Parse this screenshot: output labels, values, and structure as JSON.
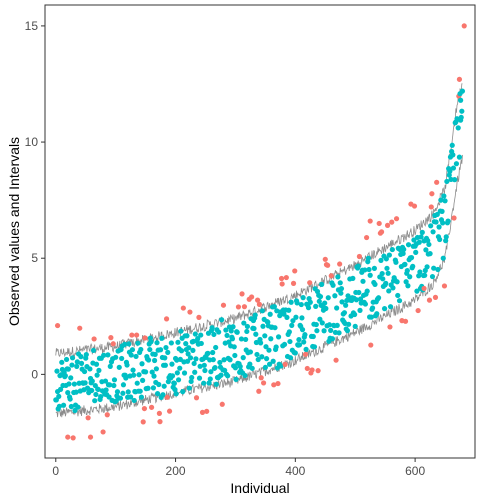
{
  "chart_data": {
    "type": "scatter",
    "title": "",
    "xlabel": "Individual",
    "ylabel": "Observed values and Intervals",
    "xlim": [
      -18,
      700
    ],
    "ylim": [
      -3.6,
      15.9
    ],
    "x_ticks": [
      0,
      200,
      400,
      600
    ],
    "y_ticks": [
      0,
      5,
      10,
      15
    ],
    "grid": false,
    "legend": "none",
    "n_individuals": 680,
    "colors": {
      "inside": "#00BFC4",
      "outside": "#F8766D",
      "interval": "#8C8C8C",
      "axis": "#333333"
    },
    "interval_band": {
      "description_points_x": [
        0,
        100,
        200,
        300,
        400,
        500,
        600,
        630,
        650,
        670,
        684
      ],
      "lower": [
        -1.7,
        -1.4,
        -0.8,
        -0.3,
        0.6,
        1.8,
        3.2,
        3.9,
        5.0,
        8.2,
        10.0
      ],
      "upper": [
        0.9,
        1.2,
        1.8,
        2.4,
        3.4,
        4.7,
        6.2,
        6.9,
        8.0,
        11.6,
        13.1
      ]
    },
    "extreme_points": [
      {
        "x": 682,
        "y": 15.0,
        "group": "outside"
      },
      {
        "x": 674,
        "y": 12.7,
        "group": "outside"
      },
      {
        "x": 676,
        "y": 11.8,
        "group": "inside"
      },
      {
        "x": 3,
        "y": 2.1,
        "group": "outside"
      },
      {
        "x": 20,
        "y": -2.7,
        "group": "outside"
      },
      {
        "x": 58,
        "y": -2.7,
        "group": "outside"
      },
      {
        "x": 525,
        "y": 6.6,
        "group": "outside"
      },
      {
        "x": 615,
        "y": 3.7,
        "group": "outside"
      }
    ]
  }
}
